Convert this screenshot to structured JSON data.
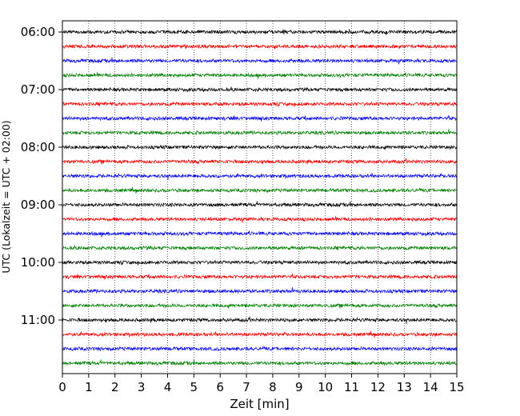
{
  "chart_data": {
    "type": "line",
    "subtype": "helicorder",
    "xlabel": "Zeit  [min]",
    "ylabel": "UTC (Lokalzeit = UTC + 02:00)",
    "xlim": [
      0,
      15
    ],
    "x_ticks": [
      "0",
      "1",
      "2",
      "3",
      "4",
      "5",
      "6",
      "7",
      "8",
      "9",
      "10",
      "11",
      "12",
      "13",
      "14",
      "15"
    ],
    "y_ticks": [
      "06:00",
      "07:00",
      "08:00",
      "09:00",
      "10:00",
      "11:00"
    ],
    "trace_colors": [
      "#000000",
      "#ff0000",
      "#0000ff",
      "#008000"
    ],
    "trace_start_times": [
      "06:00",
      "06:15",
      "06:30",
      "06:45",
      "07:00",
      "07:15",
      "07:30",
      "07:45",
      "08:00",
      "08:15",
      "08:30",
      "08:45",
      "09:00",
      "09:15",
      "09:30",
      "09:45",
      "10:00",
      "10:15",
      "10:30",
      "10:45",
      "11:00",
      "11:15",
      "11:30",
      "11:45"
    ],
    "minutes_per_line": 15,
    "grid": "vertical dotted at each minute"
  }
}
